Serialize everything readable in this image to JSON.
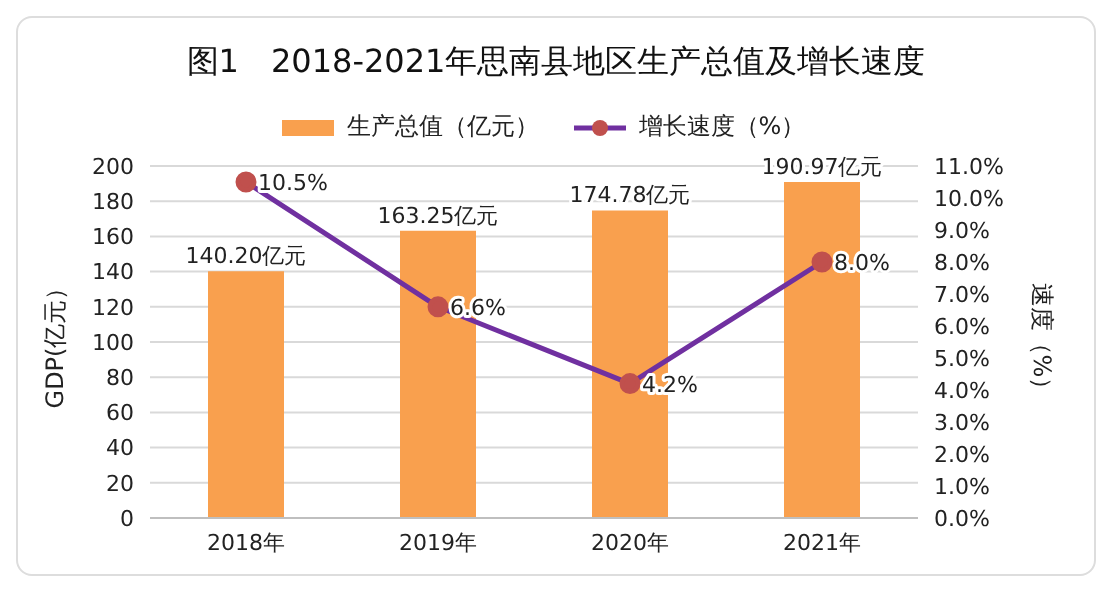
{
  "chart_data": {
    "type": "bar",
    "title": "图1　2018-2021年思南县地区生产总值及增长速度",
    "ylabel": "GDP(亿元）",
    "y2label": "速度（%）",
    "categories": [
      "2018年",
      "2019年",
      "2020年",
      "2021年"
    ],
    "series": [
      {
        "name": "生产总值（亿元）",
        "color": "#f9a04e",
        "values": [
          140.2,
          163.25,
          174.78,
          190.97
        ],
        "value_labels": [
          "140.20亿元",
          "163.25亿元",
          "174.78亿元",
          "190.97亿元"
        ]
      },
      {
        "name": "增长速度（%）",
        "type": "line",
        "axis": "y2",
        "color": "#7030a0",
        "values": [
          10.5,
          6.6,
          4.2,
          8.0
        ],
        "value_labels": [
          "10.5%",
          "6.6%",
          "4.2%",
          "8.0%"
        ]
      }
    ],
    "ylim": [
      0,
      200
    ],
    "yticks": [
      0,
      20,
      40,
      60,
      80,
      100,
      120,
      140,
      160,
      180,
      200
    ],
    "y2lim": [
      0,
      11
    ],
    "y2ticks": [
      {
        "value": 0,
        "label": "0.0%"
      },
      {
        "value": 1,
        "label": "1.0%"
      },
      {
        "value": 2,
        "label": "2.0%"
      },
      {
        "value": 3,
        "label": "3.0%"
      },
      {
        "value": 4,
        "label": "4.0%"
      },
      {
        "value": 5,
        "label": "5.0%"
      },
      {
        "value": 6,
        "label": "6.0%"
      },
      {
        "value": 7,
        "label": "7.0%"
      },
      {
        "value": 8,
        "label": "8.0%"
      },
      {
        "value": 9,
        "label": "9.0%"
      },
      {
        "value": 10,
        "label": "10.0%"
      },
      {
        "value": 11,
        "label": "11.0%"
      }
    ],
    "grid": "y",
    "legend": "top",
    "marker": "circle"
  }
}
